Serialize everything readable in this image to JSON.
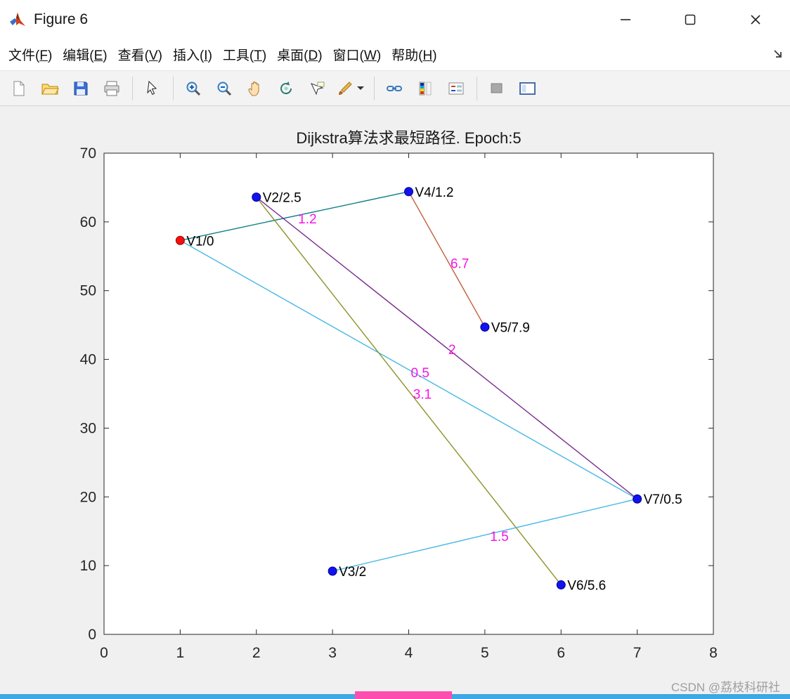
{
  "window": {
    "title": "Figure 6",
    "controls": [
      "minimize-icon",
      "maximize-icon",
      "close-icon"
    ]
  },
  "menu": {
    "items": [
      {
        "name": "file",
        "label": "文件",
        "key": "F"
      },
      {
        "name": "edit",
        "label": "编辑",
        "key": "E"
      },
      {
        "name": "view",
        "label": "查看",
        "key": "V"
      },
      {
        "name": "insert",
        "label": "插入",
        "key": "I"
      },
      {
        "name": "tools",
        "label": "工具",
        "key": "T"
      },
      {
        "name": "desktop",
        "label": "桌面",
        "key": "D"
      },
      {
        "name": "window",
        "label": "窗口",
        "key": "W"
      },
      {
        "name": "help",
        "label": "帮助",
        "key": "H"
      }
    ],
    "dock_icon": "dock-figure-icon"
  },
  "toolbar": {
    "icons": [
      "new-file-icon",
      "open-file-icon",
      "save-icon",
      "print-icon",
      "edit-plot-arrow-icon",
      "zoom-in-icon",
      "zoom-out-icon",
      "pan-hand-icon",
      "rotate-3d-icon",
      "data-cursor-icon",
      "brush-icon",
      "brush-dropdown-caret",
      "link-plot-icon",
      "insert-colorbar-icon",
      "insert-legend-icon",
      "hide-plot-tools-icon",
      "show-plot-tools-icon"
    ]
  },
  "chart_data": {
    "type": "scatter",
    "title": "Dijkstra算法求最短路径. Epoch:5",
    "xlabel": "",
    "ylabel": "",
    "xlim": [
      0,
      8
    ],
    "ylim": [
      0,
      70
    ],
    "xticks": [
      0,
      1,
      2,
      3,
      4,
      5,
      6,
      7,
      8
    ],
    "yticks": [
      0,
      10,
      20,
      30,
      40,
      50,
      60,
      70
    ],
    "grid": false,
    "legend": "none",
    "weight_label_color": "#f514e8",
    "nodes": [
      {
        "id": "V1",
        "label": "V1/0",
        "x": 1,
        "y": 57.3,
        "color": "#f50f10",
        "edge": "#a00000"
      },
      {
        "id": "V2",
        "label": "V2/2.5",
        "x": 2,
        "y": 63.6,
        "color": "#1212ee",
        "edge": "#000090"
      },
      {
        "id": "V3",
        "label": "V3/2",
        "x": 3,
        "y": 9.2,
        "color": "#1212ee",
        "edge": "#000090"
      },
      {
        "id": "V4",
        "label": "V4/1.2",
        "x": 4,
        "y": 64.4,
        "color": "#1212ee",
        "edge": "#000090"
      },
      {
        "id": "V5",
        "label": "V5/7.9",
        "x": 5,
        "y": 44.7,
        "color": "#1212ee",
        "edge": "#000090"
      },
      {
        "id": "V6",
        "label": "V6/5.6",
        "x": 6,
        "y": 7.2,
        "color": "#1212ee",
        "edge": "#000090"
      },
      {
        "id": "V7",
        "label": "V7/0.5",
        "x": 7,
        "y": 19.7,
        "color": "#1212ee",
        "edge": "#000090"
      }
    ],
    "edges": [
      {
        "from": "V1",
        "to": "V4",
        "weight": "1.2",
        "color": "#0e7f86",
        "label_x": 2.67,
        "label_y": 60.5
      },
      {
        "from": "V4",
        "to": "V5",
        "weight": "6.7",
        "color": "#c25b38",
        "label_x": 4.67,
        "label_y": 54.0
      },
      {
        "from": "V2",
        "to": "V7",
        "weight": "2",
        "color": "#7a2d8e",
        "label_x": 4.57,
        "label_y": 41.5
      },
      {
        "from": "V1",
        "to": "V7",
        "weight": "0.5",
        "color": "#49b8e6",
        "label_x": 4.15,
        "label_y": 38.1
      },
      {
        "from": "V2",
        "to": "V6",
        "weight": "3.1",
        "color": "#8d9226",
        "label_x": 4.18,
        "label_y": 35.0
      },
      {
        "from": "V3",
        "to": "V7",
        "weight": "1.5",
        "color": "#49b8e6",
        "label_x": 5.19,
        "label_y": 14.3
      }
    ]
  },
  "watermark": {
    "text": "CSDN @荔枝科研社"
  },
  "footer": {
    "blue_bar_color": "#3fa7e3",
    "pink_bar_color": "#fd4eb0"
  }
}
